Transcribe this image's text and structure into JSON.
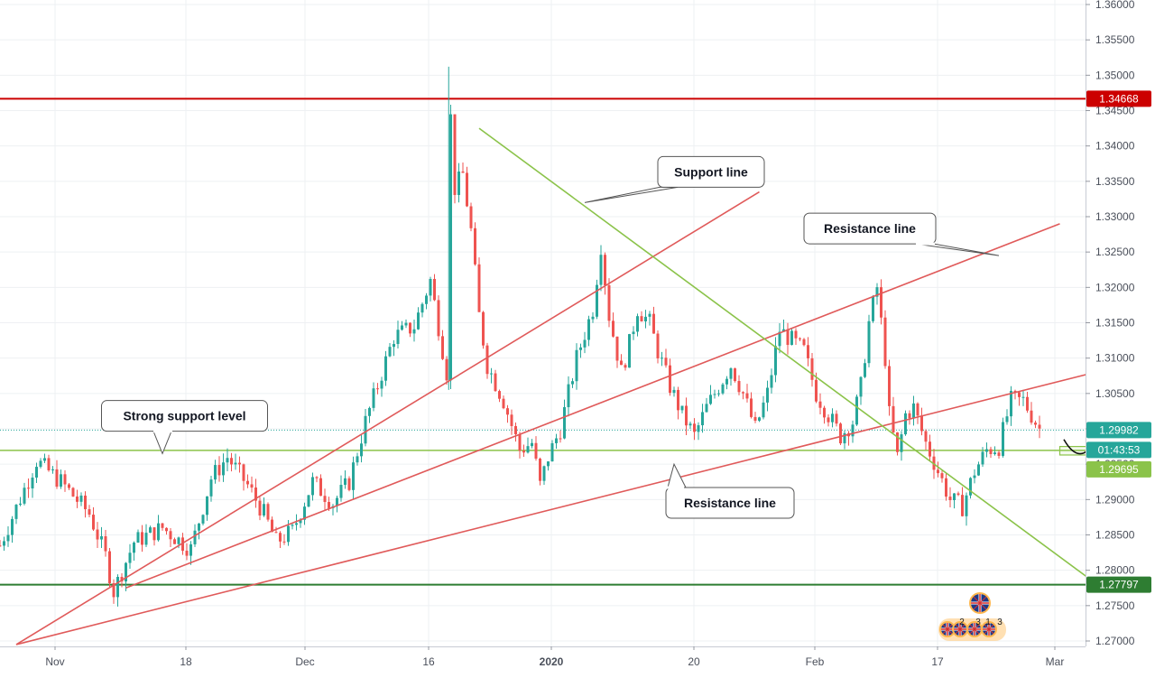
{
  "chart_data": {
    "type": "candlestick",
    "instrument_note": "",
    "x_ticks": [
      "Nov",
      "18",
      "Dec",
      "16",
      "2020",
      "20",
      "Feb",
      "17",
      "Mar"
    ],
    "x_tick_bold": "2020",
    "ylim": [
      1.2695,
      1.3605
    ],
    "y_ticks": [
      "1.36000",
      "1.35500",
      "1.35000",
      "1.34500",
      "1.34000",
      "1.33500",
      "1.33000",
      "1.32500",
      "1.32000",
      "1.31500",
      "1.31000",
      "1.30500",
      "1.30000",
      "1.29500",
      "1.29000",
      "1.28500",
      "1.28000",
      "1.27500",
      "1.27000"
    ],
    "grid": true,
    "colors": {
      "up": "#26a69a",
      "down": "#ef5350",
      "resistance_line": "#e05a5a",
      "support_line": "#8bc34a",
      "red_level": "#cc0000",
      "green_level": "#2e7d32",
      "current_tag": "#26a69a",
      "dotted_line": "#26a69a"
    },
    "candle_path": [
      [
        0,
        1.2835
      ],
      [
        9,
        1.2955
      ],
      [
        15,
        1.2925
      ],
      [
        22,
        1.288
      ],
      [
        26,
        1.282
      ],
      [
        28,
        1.277
      ],
      [
        33,
        1.284
      ],
      [
        40,
        1.286
      ],
      [
        47,
        1.283
      ],
      [
        52,
        1.293
      ],
      [
        56,
        1.296
      ],
      [
        61,
        1.292
      ],
      [
        65,
        1.288
      ],
      [
        68,
        1.284
      ],
      [
        72,
        1.2855
      ],
      [
        77,
        1.2925
      ],
      [
        82,
        1.2895
      ],
      [
        86,
        1.2925
      ],
      [
        90,
        1.301
      ],
      [
        97,
        1.313
      ],
      [
        102,
        1.3145
      ],
      [
        106,
        1.321
      ],
      [
        110,
        1.308
      ],
      [
        110.5,
        1.35
      ],
      [
        111,
        1.344
      ],
      [
        112,
        1.334
      ],
      [
        114,
        1.336
      ],
      [
        116,
        1.328
      ],
      [
        118,
        1.316
      ],
      [
        120,
        1.309
      ],
      [
        124,
        1.304
      ],
      [
        128,
        1.297
      ],
      [
        131,
        1.298
      ],
      [
        133,
        1.292
      ],
      [
        135,
        1.296
      ],
      [
        138,
        1.3
      ],
      [
        142,
        1.31
      ],
      [
        146,
        1.317
      ],
      [
        148,
        1.326
      ],
      [
        150,
        1.316
      ],
      [
        153,
        1.308
      ],
      [
        155,
        1.312
      ],
      [
        157,
        1.317
      ],
      [
        160,
        1.315
      ],
      [
        162,
        1.311
      ],
      [
        165,
        1.306
      ],
      [
        168,
        1.302
      ],
      [
        171,
        1.299
      ],
      [
        174,
        1.303
      ],
      [
        177,
        1.306
      ],
      [
        180,
        1.309
      ],
      [
        183,
        1.305
      ],
      [
        186,
        1.3
      ],
      [
        189,
        1.305
      ],
      [
        192,
        1.314
      ],
      [
        194,
        1.313
      ],
      [
        198,
        1.311
      ],
      [
        201,
        1.305
      ],
      [
        204,
        1.302
      ],
      [
        207,
        1.299
      ],
      [
        210,
        1.301
      ],
      [
        212,
        1.306
      ],
      [
        214,
        1.315
      ],
      [
        216,
        1.32
      ],
      [
        218,
        1.31
      ],
      [
        219,
        1.302
      ],
      [
        221,
        1.296
      ],
      [
        223,
        1.302
      ],
      [
        225,
        1.303
      ],
      [
        228,
        1.298
      ],
      [
        231,
        1.294
      ],
      [
        234,
        1.29
      ],
      [
        237,
        1.289
      ],
      [
        240,
        1.294
      ],
      [
        243,
        1.297
      ],
      [
        246,
        1.2975
      ],
      [
        249,
        1.304
      ],
      [
        252,
        1.304
      ],
      [
        255,
        1.301
      ],
      [
        256,
        1.3
      ]
    ],
    "horizontal_levels": [
      {
        "price": 1.34668,
        "label": "1.34668",
        "color": "#cc0000"
      },
      {
        "price": 1.27797,
        "label": "1.27797",
        "color": "#2e7d32"
      },
      {
        "price": 1.29695,
        "label": "1.29695",
        "color": "#8bc34a"
      }
    ],
    "current_price": {
      "price": 1.29982,
      "label": "1.29982",
      "countdown": "01:43:53"
    },
    "trend_lines": [
      {
        "name": "resistance-line-upper",
        "kind": "resistance",
        "from": [
          4,
          1.2695
        ],
        "to": [
          187,
          1.3335
        ]
      },
      {
        "name": "resistance-line-mid",
        "kind": "resistance",
        "from": [
          31,
          1.2775
        ],
        "to": [
          261,
          1.329
        ]
      },
      {
        "name": "resistance-line-lower",
        "kind": "resistance",
        "from": [
          4,
          1.2695
        ],
        "to": [
          287,
          1.3105
        ]
      },
      {
        "name": "support-line-diagonal",
        "kind": "support",
        "from": [
          118,
          1.3425
        ],
        "to": [
          269,
          1.2785
        ]
      }
    ],
    "annotations": [
      {
        "name": "support-line-callout",
        "text": "Support line",
        "x": 162,
        "price": 1.3385,
        "pointer": [
          144,
          1.332
        ],
        "w": 118
      },
      {
        "name": "resistance-line-callout-top",
        "text": "Resistance line",
        "x": 198,
        "price": 1.3305,
        "pointer": [
          246,
          1.3245
        ],
        "w": 146
      },
      {
        "name": "strong-support-callout",
        "text": "Strong support level",
        "x": 25,
        "price": 1.304,
        "pointer": [
          40,
          1.2965
        ],
        "w": 184
      },
      {
        "name": "resistance-line-callout-bottom",
        "text": "Resistance line",
        "x": 164,
        "price": 1.2917,
        "pointer": [
          166,
          1.295
        ],
        "w": 142
      }
    ],
    "projection": {
      "target_box": {
        "from_x": 269,
        "to_x": 281,
        "price_top": 1.309,
        "price_bottom": 1.3075
      },
      "support_box": {
        "from_x": 261,
        "to_x": 278,
        "price_top": 1.2975,
        "price_bottom": 1.2963
      },
      "arrow": [
        [
          262,
          1.2985
        ],
        [
          266,
          1.296
        ],
        [
          270,
          1.2985
        ],
        [
          272,
          1.303
        ],
        [
          274,
          1.3075
        ]
      ]
    },
    "event_markers": [
      "2",
      "3",
      "1",
      "3"
    ]
  }
}
